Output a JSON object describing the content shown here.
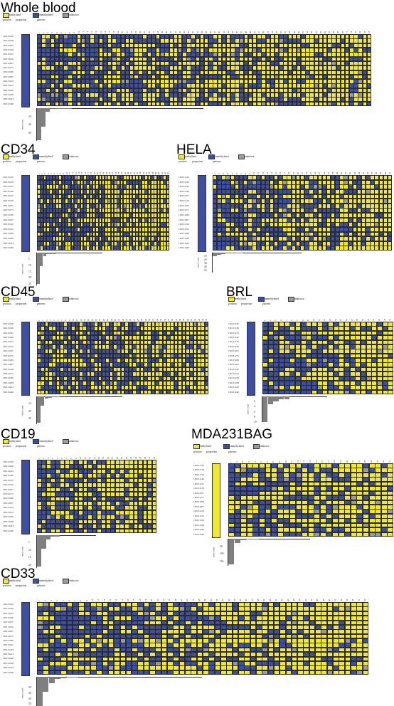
{
  "colors": {
    "methylated": "#f0e82d",
    "unmethylated": "#3c4fa3",
    "unknown": "#9a9a9a"
  },
  "legend": {
    "methylated": "methylated",
    "unmethylated": "unmethylated",
    "unknown": "unknown"
  },
  "headers": {
    "position": "position",
    "proportion": "proportion",
    "patterns": "patterns",
    "read_count": "read count"
  },
  "positions": [
    "130131136",
    "130131138",
    "130131143",
    "130131146",
    "130131155",
    "130131159",
    "130131167",
    "130131175",
    "130131189",
    "130131207",
    "130131210",
    "130131212",
    "130131236",
    "130131238",
    "130131243",
    "130131246"
  ],
  "chart_data": [
    {
      "type": "heatmap",
      "title": "Whole blood",
      "n_patterns": 76,
      "ylim": [
        0,
        80
      ],
      "yticks": [
        20,
        40,
        60
      ],
      "counts": [
        78,
        46,
        8,
        2,
        1,
        1,
        1,
        1
      ]
    },
    {
      "type": "heatmap",
      "title": "CD34",
      "n_patterns": 43,
      "ylim": [
        0,
        26
      ],
      "yticks": [
        5,
        10,
        15,
        20,
        25
      ],
      "counts": [
        25,
        11,
        3,
        1,
        1,
        1
      ]
    },
    {
      "type": "heatmap",
      "title": "HELA",
      "n_patterns": 41,
      "ylim": [
        0,
        55
      ],
      "yticks": [
        10,
        20,
        30,
        40,
        50
      ],
      "counts": [
        10,
        6,
        3,
        2,
        2,
        1,
        1
      ]
    },
    {
      "type": "heatmap",
      "title": "CD45",
      "n_patterns": 45,
      "ylim": [
        0,
        38
      ],
      "yticks": [
        10,
        20,
        30
      ],
      "counts": [
        36,
        13,
        3,
        2,
        1,
        1
      ]
    },
    {
      "type": "heatmap",
      "title": "BRL",
      "n_patterns": 24,
      "ylim": [
        0,
        10
      ],
      "yticks": [
        2,
        4,
        6,
        8,
        10
      ],
      "counts": [
        10,
        3,
        2,
        1,
        1
      ]
    },
    {
      "type": "heatmap",
      "title": "CD19",
      "n_patterns": 26,
      "ylim": [
        0,
        22
      ],
      "yticks": [
        5,
        10,
        15,
        20
      ],
      "counts": [
        21,
        9,
        3,
        1,
        1
      ]
    },
    {
      "type": "heatmap",
      "title": "MDA231BAG",
      "n_patterns": 27,
      "ylim": [
        0,
        180
      ],
      "yticks": [
        50,
        100,
        150
      ],
      "counts": [
        170,
        30,
        10,
        4,
        2
      ]
    },
    {
      "type": "heatmap",
      "title": "CD33",
      "n_patterns": 56,
      "ylim": [
        0,
        60
      ],
      "yticks": [
        20,
        30,
        40,
        50,
        60
      ],
      "counts": [
        56,
        28,
        12,
        4,
        2,
        1,
        1
      ]
    }
  ]
}
